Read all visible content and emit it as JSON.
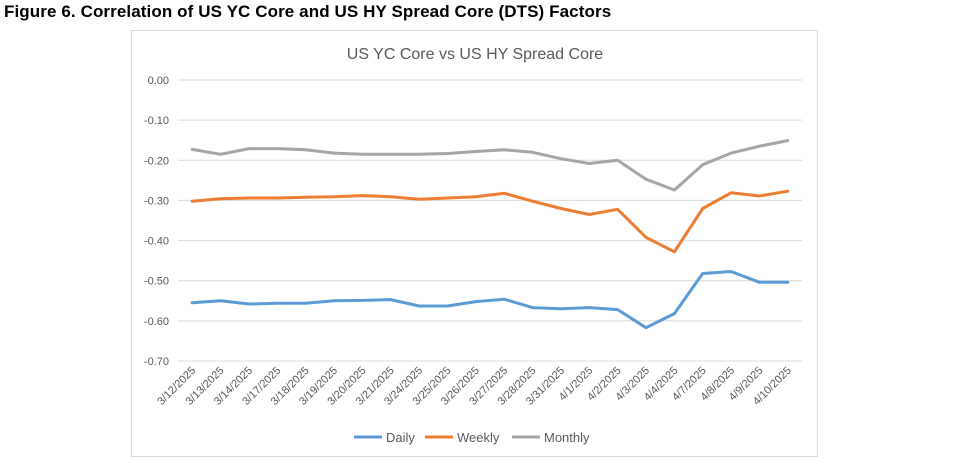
{
  "figure": {
    "title": "Figure 6. Correlation of US YC Core and US HY Spread Core (DTS) Factors"
  },
  "chart_data": {
    "type": "line",
    "title": "US YC Core vs US HY Spread Core",
    "xlabel": "",
    "ylabel": "",
    "ylim": [
      -0.7,
      0.0
    ],
    "ytick_labels": [
      "0.00",
      "-0.10",
      "-0.20",
      "-0.30",
      "-0.40",
      "-0.50",
      "-0.60",
      "-0.70"
    ],
    "grid": true,
    "legend_position": "bottom",
    "categories": [
      "3/12/2025",
      "3/13/2025",
      "3/14/2025",
      "3/17/2025",
      "3/18/2025",
      "3/19/2025",
      "3/20/2025",
      "3/21/2025",
      "3/24/2025",
      "3/25/2025",
      "3/26/2025",
      "3/27/2025",
      "3/28/2025",
      "3/31/2025",
      "4/1/2025",
      "4/2/2025",
      "4/3/2025",
      "4/4/2025",
      "4/7/2025",
      "4/8/2025",
      "4/9/2025",
      "4/10/2025"
    ],
    "series": [
      {
        "name": "Daily",
        "color": "#5b9bd5",
        "values": [
          -0.555,
          -0.55,
          -0.558,
          -0.556,
          -0.556,
          -0.55,
          -0.549,
          -0.547,
          -0.563,
          -0.563,
          -0.552,
          -0.546,
          -0.567,
          -0.57,
          -0.567,
          -0.572,
          -0.617,
          -0.582,
          -0.482,
          -0.477,
          -0.504,
          -0.504
        ]
      },
      {
        "name": "Weekly",
        "color": "#ed7d31",
        "values": [
          -0.302,
          -0.296,
          -0.294,
          -0.294,
          -0.292,
          -0.291,
          -0.288,
          -0.291,
          -0.297,
          -0.294,
          -0.291,
          -0.282,
          -0.302,
          -0.32,
          -0.335,
          -0.322,
          -0.392,
          -0.428,
          -0.32,
          -0.281,
          -0.289,
          -0.277
        ]
      },
      {
        "name": "Monthly",
        "color": "#a5a5a5",
        "values": [
          -0.173,
          -0.185,
          -0.171,
          -0.171,
          -0.174,
          -0.182,
          -0.185,
          -0.185,
          -0.185,
          -0.183,
          -0.178,
          -0.174,
          -0.18,
          -0.196,
          -0.208,
          -0.2,
          -0.247,
          -0.274,
          -0.211,
          -0.182,
          -0.165,
          -0.151
        ]
      }
    ]
  }
}
